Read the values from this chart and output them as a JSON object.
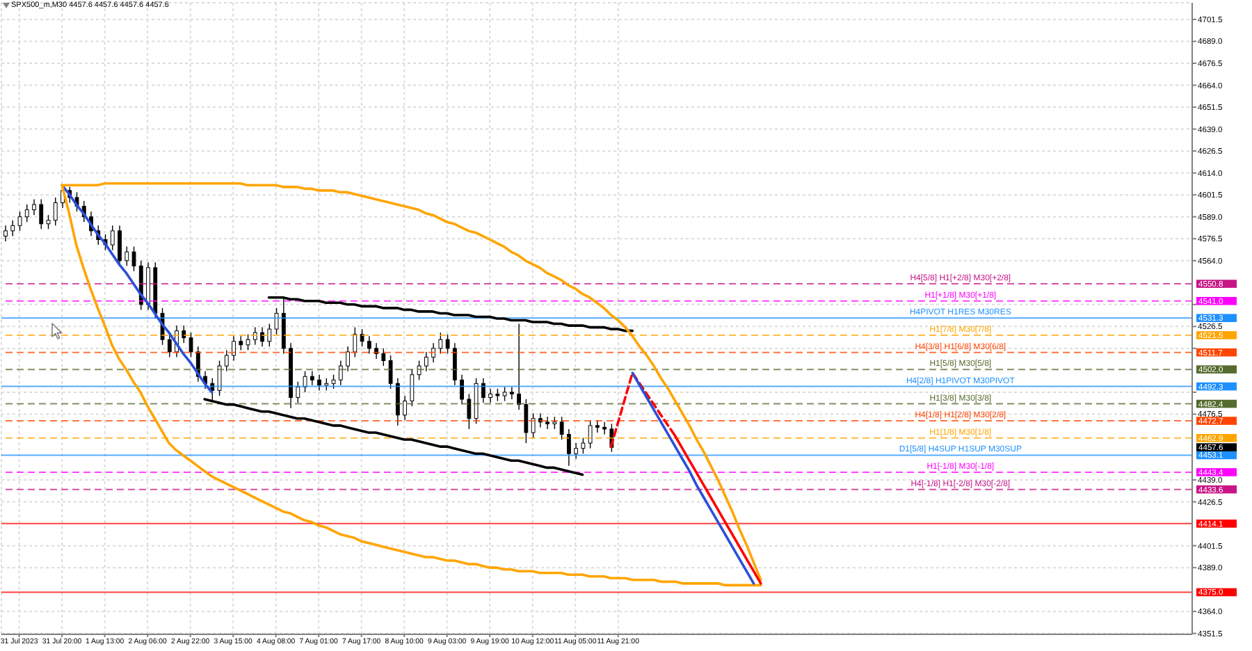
{
  "chart_data": {
    "type": "candlestick",
    "title": "SPX500_m,M30 4457.6 4457.6 4457.6 4457.6",
    "color": "#000000",
    "categories": [
      null,
      null,
      "31 Jul 2023",
      null,
      null,
      null,
      null,
      null,
      "31 Jul 20:00",
      null,
      null,
      null,
      null,
      null,
      "1 Aug 13:00",
      null,
      null,
      null,
      null,
      null,
      "2 Aug 06:00",
      null,
      null,
      null,
      null,
      null,
      "2 Aug 22:00",
      null,
      null,
      null,
      null,
      null,
      "3 Aug 15:00",
      null,
      null,
      null,
      null,
      null,
      "4 Aug 08:00",
      null,
      null,
      null,
      null,
      null,
      "7 Aug 01:00",
      null,
      null,
      null,
      null,
      null,
      "7 Aug 17:00",
      null,
      null,
      null,
      null,
      null,
      "8 Aug 10:00",
      null,
      null,
      null,
      null,
      null,
      "9 Aug 03:00",
      null,
      null,
      null,
      null,
      null,
      "9 Aug 19:00",
      null,
      null,
      null,
      null,
      null,
      "10 Aug 12:00",
      null,
      null,
      null,
      null,
      null,
      "11 Aug 05:00",
      null,
      null,
      null,
      null,
      null,
      "11 Aug 21:00",
      null,
      null,
      null,
      null,
      null,
      null,
      null,
      null,
      null,
      null,
      null,
      null,
      null,
      null,
      null,
      null,
      null,
      null,
      null,
      null,
      null,
      null,
      null,
      null,
      null,
      null,
      null,
      null,
      null,
      null,
      null,
      null,
      null,
      null,
      null,
      null,
      null,
      null,
      null,
      null,
      null,
      null,
      null,
      null,
      null,
      null,
      null,
      null,
      null,
      null,
      null,
      null,
      null,
      null,
      null,
      null,
      null,
      null,
      null,
      null,
      null,
      null,
      null,
      null,
      null,
      null,
      null,
      null,
      null,
      null,
      null,
      null,
      null,
      null,
      null,
      null,
      null,
      null,
      null,
      null
    ],
    "ohlc": [
      [
        4578,
        4584,
        4575,
        4581
      ],
      [
        4581,
        4587,
        4578,
        4584
      ],
      [
        4584,
        4592,
        4581,
        4589
      ],
      [
        4589,
        4596,
        4586,
        4593
      ],
      [
        4593,
        4599,
        4590,
        4596
      ],
      [
        4596,
        4599,
        4582,
        4585
      ],
      [
        4585,
        4590,
        4582,
        4587
      ],
      [
        4587,
        4600,
        4584,
        4597
      ],
      [
        4597,
        4607,
        4594,
        4604
      ],
      [
        4604,
        4606,
        4597,
        4600
      ],
      [
        4600,
        4603,
        4592,
        4595
      ],
      [
        4595,
        4598,
        4586,
        4589
      ],
      [
        4589,
        4592,
        4578,
        4581
      ],
      [
        4581,
        4584,
        4573,
        4576
      ],
      [
        4576,
        4579,
        4570,
        4573
      ],
      [
        4573,
        4584,
        4570,
        4581
      ],
      [
        4581,
        4584,
        4561,
        4564
      ],
      [
        4564,
        4572,
        4561,
        4569
      ],
      [
        4569,
        4572,
        4558,
        4561
      ],
      [
        4561,
        4564,
        4536,
        4539
      ],
      [
        4539,
        4563,
        4536,
        4560
      ],
      [
        4560,
        4563,
        4531,
        4534
      ],
      [
        4534,
        4537,
        4516,
        4519
      ],
      [
        4519,
        4522,
        4509,
        4512
      ],
      [
        4512,
        4527,
        4509,
        4524
      ],
      [
        4524,
        4527,
        4517,
        4520
      ],
      [
        4520,
        4523,
        4509,
        4512
      ],
      [
        4512,
        4515,
        4495,
        4498
      ],
      [
        4498,
        4501,
        4491,
        4494
      ],
      [
        4494,
        4497,
        4484,
        4490
      ],
      [
        4490,
        4507,
        4487,
        4504
      ],
      [
        4504,
        4513,
        4501,
        4510
      ],
      [
        4510,
        4521,
        4507,
        4518
      ],
      [
        4518,
        4521,
        4513,
        4516
      ],
      [
        4516,
        4522,
        4513,
        4519
      ],
      [
        4519,
        4526,
        4516,
        4523
      ],
      [
        4523,
        4526,
        4515,
        4518
      ],
      [
        4518,
        4528,
        4515,
        4525
      ],
      [
        4525,
        4537,
        4522,
        4534
      ],
      [
        4534,
        4543,
        4511,
        4514
      ],
      [
        4514,
        4517,
        4480,
        4486
      ],
      [
        4486,
        4495,
        4483,
        4492
      ],
      [
        4492,
        4501,
        4489,
        4498
      ],
      [
        4498,
        4501,
        4493,
        4496
      ],
      [
        4496,
        4499,
        4490,
        4493
      ],
      [
        4493,
        4497,
        4490,
        4494
      ],
      [
        4494,
        4499,
        4491,
        4496
      ],
      [
        4496,
        4507,
        4493,
        4504
      ],
      [
        4504,
        4515,
        4501,
        4512
      ],
      [
        4512,
        4526,
        4509,
        4522
      ],
      [
        4522,
        4525,
        4515,
        4518
      ],
      [
        4518,
        4521,
        4511,
        4514
      ],
      [
        4514,
        4517,
        4508,
        4511
      ],
      [
        4511,
        4514,
        4504,
        4507
      ],
      [
        4507,
        4510,
        4491,
        4494
      ],
      [
        4494,
        4497,
        4470,
        4476
      ],
      [
        4476,
        4487,
        4473,
        4484
      ],
      [
        4484,
        4502,
        4481,
        4499
      ],
      [
        4499,
        4507,
        4496,
        4504
      ],
      [
        4504,
        4512,
        4501,
        4509
      ],
      [
        4509,
        4517,
        4506,
        4514
      ],
      [
        4514,
        4523,
        4511,
        4519
      ],
      [
        4519,
        4522,
        4511,
        4514
      ],
      [
        4514,
        4517,
        4493,
        4496
      ],
      [
        4496,
        4499,
        4482,
        4485
      ],
      [
        4485,
        4488,
        4468,
        4474
      ],
      [
        4474,
        4497,
        4471,
        4494
      ],
      [
        4494,
        4497,
        4483,
        4486
      ],
      [
        4486,
        4491,
        4483,
        4488
      ],
      [
        4488,
        4491,
        4484,
        4487
      ],
      [
        4487,
        4492,
        4484,
        4489
      ],
      [
        4489,
        4492,
        4485,
        4488
      ],
      [
        4488,
        4528,
        4479,
        4482
      ],
      [
        4482,
        4485,
        4460,
        4466
      ],
      [
        4466,
        4477,
        4463,
        4474
      ],
      [
        4474,
        4477,
        4469,
        4472
      ],
      [
        4472,
        4475,
        4468,
        4471
      ],
      [
        4471,
        4475,
        4468,
        4472
      ],
      [
        4472,
        4475,
        4462,
        4465
      ],
      [
        4465,
        4468,
        4447,
        4454
      ],
      [
        4454,
        4460,
        4451,
        4457
      ],
      [
        4457,
        4463,
        4454,
        4460
      ],
      [
        4460,
        4473,
        4457,
        4470
      ],
      [
        4470,
        4473,
        4466,
        4469
      ],
      [
        4469,
        4472,
        4465,
        4468
      ],
      [
        4468,
        4471,
        4455,
        4457.6
      ],
      null,
      null,
      null,
      null,
      null,
      null,
      null,
      null,
      null,
      null,
      null,
      null,
      null,
      null,
      null,
      null,
      null,
      null,
      null,
      null,
      null,
      null,
      null,
      null,
      null,
      null,
      null,
      null,
      null,
      null,
      null,
      null,
      null,
      null,
      null,
      null,
      null,
      null,
      null,
      null,
      null,
      null,
      null,
      null,
      null,
      null,
      null,
      null,
      null,
      null,
      null,
      null,
      null,
      null,
      null,
      null,
      null,
      null,
      null,
      null,
      null,
      null,
      null,
      null,
      null,
      null,
      null,
      null,
      null,
      null,
      null,
      null,
      null,
      null,
      null,
      null,
      null,
      null,
      null,
      null,
      null
    ],
    "series": [
      {
        "type": "line",
        "color": "#2b4fd8",
        "values": [
          null,
          null,
          null,
          null,
          null,
          null,
          null,
          null,
          4607,
          4602,
          4596,
          4591,
          4585,
          4579,
          4574,
          4568,
          4562,
          4557,
          4551,
          4545,
          4540,
          4534,
          4528,
          4523,
          4517,
          4511,
          4506,
          4500,
          4494,
          4489,
          null,
          null,
          null,
          null,
          null,
          null,
          null,
          null,
          null,
          null,
          null,
          null,
          null,
          null,
          null,
          null,
          null,
          null,
          null,
          null,
          null,
          null,
          null,
          null,
          null,
          null,
          null,
          null,
          null,
          null,
          null,
          null,
          null,
          null,
          null,
          null,
          null,
          null,
          null,
          null,
          null,
          null,
          null,
          null,
          null,
          null,
          null,
          null,
          null,
          null,
          null,
          null,
          null,
          null,
          null,
          null,
          null,
          null,
          null,
          null,
          null,
          null,
          null,
          null,
          null,
          null,
          null,
          null,
          null,
          null,
          null,
          null,
          null,
          null,
          null,
          null,
          null,
          null,
          null,
          null,
          null,
          null,
          null,
          null,
          null,
          null,
          null,
          null,
          null,
          null,
          null,
          null,
          null,
          null,
          null,
          null,
          null,
          null,
          null,
          null,
          null,
          null,
          null,
          null,
          null,
          null,
          null,
          null,
          null,
          null,
          null,
          null,
          null,
          null,
          null,
          null,
          null,
          null,
          null,
          null,
          null,
          null,
          null,
          null,
          null,
          null,
          null,
          null,
          null,
          null,
          null,
          null,
          null,
          null,
          null,
          null,
          null
        ]
      },
      {
        "type": "line",
        "color": "#000000",
        "values": [
          null,
          null,
          null,
          null,
          null,
          null,
          null,
          null,
          null,
          null,
          null,
          null,
          null,
          null,
          null,
          null,
          null,
          null,
          null,
          null,
          null,
          null,
          null,
          null,
          null,
          null,
          null,
          null,
          null,
          null,
          null,
          null,
          null,
          null,
          null,
          null,
          null,
          4543,
          4543,
          4543,
          4542,
          4542,
          4541,
          4541,
          4541,
          4540,
          4540,
          4540,
          4539,
          4539,
          4538,
          4538,
          4538,
          4537,
          4537,
          4537,
          4536,
          4536,
          4535,
          4535,
          4535,
          4534,
          4534,
          4533,
          4533,
          4533,
          4532,
          4532,
          4532,
          4531,
          4531,
          4530,
          4530,
          4530,
          4529,
          4529,
          4529,
          4528,
          4528,
          4527,
          4527,
          4527,
          4526,
          4526,
          4526,
          4525,
          4525,
          4524,
          4524,
          null,
          null,
          null,
          null,
          null,
          null,
          null,
          null,
          null,
          null,
          null,
          null,
          null,
          null,
          null,
          null,
          null,
          null,
          null,
          null,
          null,
          null,
          null,
          null,
          null,
          null,
          null,
          null,
          null,
          null,
          null,
          null,
          null,
          null,
          null,
          null,
          null,
          null,
          null,
          null,
          null,
          null,
          null,
          null,
          null,
          null,
          null,
          null,
          null,
          null,
          null,
          null,
          null,
          null,
          null,
          null,
          null,
          null,
          null,
          null,
          null,
          null,
          null,
          null,
          null,
          null,
          null,
          null,
          null,
          null,
          null,
          null,
          null,
          null,
          null,
          null,
          null,
          null
        ]
      },
      {
        "type": "line",
        "color": "#000000",
        "values": [
          null,
          null,
          null,
          null,
          null,
          null,
          null,
          null,
          null,
          null,
          null,
          null,
          null,
          null,
          null,
          null,
          null,
          null,
          null,
          null,
          null,
          null,
          null,
          null,
          null,
          null,
          null,
          null,
          4485,
          4484,
          4483,
          4482,
          4482,
          4481,
          4480,
          4479,
          4478,
          4478,
          4477,
          4476,
          4475,
          4474,
          4474,
          4473,
          4472,
          4471,
          4470,
          4470,
          4469,
          4468,
          4467,
          4466,
          4466,
          4465,
          4464,
          4463,
          4462,
          4462,
          4461,
          4460,
          4459,
          4458,
          4458,
          4457,
          4456,
          4455,
          4454,
          4454,
          4453,
          4452,
          4451,
          4450,
          4450,
          4449,
          4448,
          4447,
          4446,
          4446,
          4445,
          4444,
          4443,
          4442,
          null,
          null,
          null,
          null,
          null,
          null,
          null,
          null,
          null,
          null,
          null,
          null,
          null,
          null,
          null,
          null,
          null,
          null,
          null,
          null,
          null,
          null,
          null,
          null,
          null,
          null,
          null,
          null,
          null,
          null,
          null,
          null,
          null,
          null,
          null,
          null,
          null,
          null,
          null,
          null,
          null,
          null,
          null,
          null,
          null,
          null,
          null,
          null,
          null,
          null,
          null,
          null,
          null,
          null,
          null,
          null,
          null,
          null,
          null,
          null,
          null,
          null,
          null,
          null,
          null,
          null,
          null,
          null,
          null,
          null,
          null,
          null,
          null,
          null,
          null,
          null,
          null,
          null,
          null,
          null,
          null,
          null,
          null,
          null,
          null
        ]
      },
      {
        "type": "line",
        "color": "#ffa500",
        "values": [
          null,
          null,
          null,
          null,
          null,
          null,
          null,
          null,
          4607,
          4607,
          4607,
          4607,
          4607,
          4607,
          4608,
          4608,
          4608,
          4608,
          4608,
          4608,
          4608,
          4608,
          4608,
          4608,
          4608,
          4608,
          4608,
          4608,
          4608,
          4608,
          4608,
          4608,
          4608,
          4608,
          4607,
          4607,
          4607,
          4607,
          4607,
          4606,
          4606,
          4606,
          4605,
          4605,
          4604,
          4604,
          4604,
          4603,
          4603,
          4602,
          4601,
          4600,
          4599,
          4598,
          4597,
          4596,
          4595,
          4594,
          4593,
          4591,
          4590,
          4588,
          4586,
          4585,
          4583,
          4581,
          4580,
          4578,
          4576,
          4574,
          4572,
          4569,
          4567,
          4564,
          4562,
          4560,
          4557,
          4555,
          4553,
          4550,
          4548,
          4545,
          4543,
          4540,
          4537,
          4533,
          4530,
          4526,
          4521,
          4515,
          4510,
          4504,
          4497,
          4491,
          4484,
          4477,
          4470,
          4462,
          4455,
          4447,
          4439,
          4430,
          4421,
          4411,
          4402,
          4392,
          4382,
          null,
          null,
          null,
          null,
          null,
          null,
          null,
          null,
          null,
          null,
          null,
          null,
          null,
          null,
          null,
          null,
          null,
          null,
          null,
          null,
          null,
          null,
          null,
          null,
          null,
          null,
          null,
          null,
          null,
          null,
          null,
          null,
          null,
          null,
          null,
          null,
          null,
          null,
          null,
          null,
          null,
          null,
          null,
          null,
          null,
          null,
          null,
          null,
          null,
          null,
          null,
          null,
          null,
          null,
          null,
          null,
          null,
          null,
          null,
          null
        ]
      },
      {
        "type": "line",
        "color": "#ffa500",
        "values": [
          null,
          null,
          null,
          null,
          null,
          null,
          null,
          null,
          4607,
          4591,
          4573,
          4560,
          4548,
          4537,
          4527,
          4516,
          4508,
          4502,
          4495,
          4489,
          4481,
          4474,
          4467,
          4460,
          4456,
          4453,
          4450,
          4447,
          4444,
          4441,
          4439,
          4437,
          4435,
          4433,
          4431,
          4429,
          4427,
          4425,
          4423,
          4421,
          4420,
          4418,
          4416,
          4415,
          4413,
          4412,
          4410,
          4408,
          4407,
          4406,
          4404,
          4403,
          4402,
          4401,
          4400,
          4399,
          4398,
          4397,
          4396,
          4395,
          4395,
          4394,
          4393,
          4393,
          4392,
          4391,
          4391,
          4390,
          4389,
          4389,
          4388,
          4388,
          4387,
          4387,
          4387,
          4386,
          4386,
          4386,
          4386,
          4385,
          4385,
          4385,
          4384,
          4384,
          4384,
          4383,
          4383,
          4383,
          4382,
          4382,
          4382,
          4382,
          4381,
          4381,
          4381,
          4380,
          4380,
          4380,
          4380,
          4380,
          4380,
          4379,
          4379,
          4379,
          4379,
          4379,
          4379,
          null,
          null,
          null,
          null,
          null,
          null,
          null,
          null,
          null,
          null,
          null,
          null,
          null,
          null,
          null,
          null,
          null,
          null,
          null,
          null,
          null,
          null,
          null,
          null,
          null,
          null,
          null,
          null,
          null,
          null,
          null,
          null,
          null,
          null,
          null,
          null,
          null,
          null,
          null,
          null,
          null,
          null,
          null,
          null,
          null,
          null,
          null,
          null,
          null,
          null,
          null,
          null,
          null,
          null,
          null,
          null,
          null,
          null,
          null,
          null
        ]
      },
      {
        "type": "line",
        "color": "#ff0000",
        "line_style": "dashed",
        "values": [
          null,
          null,
          null,
          null,
          null,
          null,
          null,
          null,
          null,
          null,
          null,
          null,
          null,
          null,
          null,
          null,
          null,
          null,
          null,
          null,
          null,
          null,
          null,
          null,
          null,
          null,
          null,
          null,
          null,
          null,
          null,
          null,
          null,
          null,
          null,
          null,
          null,
          null,
          null,
          null,
          null,
          null,
          null,
          null,
          null,
          null,
          null,
          null,
          null,
          null,
          null,
          null,
          null,
          null,
          null,
          null,
          null,
          null,
          null,
          null,
          null,
          null,
          null,
          null,
          null,
          null,
          null,
          null,
          null,
          null,
          null,
          null,
          null,
          null,
          null,
          null,
          null,
          null,
          null,
          null,
          null,
          null,
          null,
          null,
          null,
          4458,
          4472,
          4486,
          4500,
          4494,
          4488,
          4482,
          4476,
          4470,
          4464,
          null,
          null,
          null,
          null,
          null,
          null,
          null,
          null,
          null,
          null,
          null,
          null,
          null,
          null,
          null,
          null,
          null,
          null,
          null,
          null,
          null,
          null,
          null,
          null,
          null,
          null,
          null,
          null,
          null,
          null,
          null,
          null,
          null,
          null,
          null,
          null,
          null,
          null,
          null,
          null,
          null,
          null,
          null,
          null,
          null,
          null,
          null,
          null,
          null,
          null,
          null,
          null,
          null,
          null,
          null,
          null,
          null,
          null,
          null,
          null,
          null,
          null,
          null,
          null,
          null,
          null,
          null,
          null,
          null,
          null,
          null,
          null
        ]
      },
      {
        "type": "line",
        "color": "#2b4fd8",
        "values": [
          null,
          null,
          null,
          null,
          null,
          null,
          null,
          null,
          null,
          null,
          null,
          null,
          null,
          null,
          null,
          null,
          null,
          null,
          null,
          null,
          null,
          null,
          null,
          null,
          null,
          null,
          null,
          null,
          null,
          null,
          null,
          null,
          null,
          null,
          null,
          null,
          null,
          null,
          null,
          null,
          null,
          null,
          null,
          null,
          null,
          null,
          null,
          null,
          null,
          null,
          null,
          null,
          null,
          null,
          null,
          null,
          null,
          null,
          null,
          null,
          null,
          null,
          null,
          null,
          null,
          null,
          null,
          null,
          null,
          null,
          null,
          null,
          null,
          null,
          null,
          null,
          null,
          null,
          null,
          null,
          null,
          null,
          null,
          null,
          null,
          null,
          null,
          null,
          4500,
          4493,
          4486,
          4479,
          4472,
          4465,
          4458,
          4451,
          4444,
          4436,
          4429,
          4422,
          4415,
          4408,
          4401,
          4394,
          4387,
          4380,
          null,
          null,
          null,
          null,
          null,
          null,
          null,
          null,
          null,
          null,
          null,
          null,
          null,
          null,
          null,
          null,
          null,
          null,
          null,
          null,
          null,
          null,
          null,
          null,
          null,
          null,
          null,
          null,
          null,
          null,
          null,
          null,
          null,
          null,
          null,
          null,
          null,
          null,
          null,
          null,
          null,
          null,
          null,
          null,
          null,
          null,
          null,
          null,
          null,
          null,
          null,
          null,
          null,
          null,
          null,
          null,
          null,
          null,
          null,
          null,
          null
        ]
      },
      {
        "type": "line",
        "color": "#ff0000",
        "values": [
          null,
          null,
          null,
          null,
          null,
          null,
          null,
          null,
          null,
          null,
          null,
          null,
          null,
          null,
          null,
          null,
          null,
          null,
          null,
          null,
          null,
          null,
          null,
          null,
          null,
          null,
          null,
          null,
          null,
          null,
          null,
          null,
          null,
          null,
          null,
          null,
          null,
          null,
          null,
          null,
          null,
          null,
          null,
          null,
          null,
          null,
          null,
          null,
          null,
          null,
          null,
          null,
          null,
          null,
          null,
          null,
          null,
          null,
          null,
          null,
          null,
          null,
          null,
          null,
          null,
          null,
          null,
          null,
          null,
          null,
          null,
          null,
          null,
          null,
          null,
          null,
          null,
          null,
          null,
          null,
          null,
          null,
          null,
          null,
          null,
          null,
          null,
          null,
          null,
          null,
          null,
          null,
          null,
          null,
          4464,
          4457,
          4450,
          4443,
          4436,
          4429,
          4422,
          4415,
          4408,
          4401,
          4394,
          4387,
          4380,
          null,
          null,
          null,
          null,
          null,
          null,
          null,
          null,
          null,
          null,
          null,
          null,
          null,
          null,
          null,
          null,
          null,
          null,
          null,
          null,
          null,
          null,
          null,
          null,
          null,
          null,
          null,
          null,
          null,
          null,
          null,
          null,
          null,
          null,
          null,
          null,
          null,
          null,
          null,
          null,
          null,
          null,
          null,
          null,
          null,
          null,
          null,
          null,
          null,
          null,
          null,
          null,
          null,
          null,
          null,
          null,
          null,
          null,
          null,
          null
        ]
      }
    ],
    "ylim": [
      4351,
      4711
    ],
    "yticks": [
      4351.5,
      {
        "value": 4364,
        "label": "4364.0"
      },
      {
        "value": 4389,
        "label": "4389.0"
      },
      4401.5,
      4426.5,
      {
        "value": 4439,
        "label": "4439.0"
      },
      4476.5,
      {
        "value": 4489,
        "label": null
      },
      {
        "value": 4514,
        "label": null
      },
      4526.5,
      {
        "value": 4539,
        "label": null
      },
      {
        "value": 4564,
        "label": "4564.0"
      },
      4576.5,
      {
        "value": 4589,
        "label": "4589.0"
      },
      4601.5,
      {
        "value": 4614,
        "label": "4614.0"
      },
      4626.5,
      {
        "value": 4639,
        "label": "4639.0"
      },
      4651.5,
      {
        "value": 4664,
        "label": "4664.0"
      },
      4676.5,
      {
        "value": 4689,
        "label": "4689.0"
      },
      4701.5
    ],
    "grid": true,
    "ref_lines": [
      {
        "axis": "y",
        "value": 4550.8,
        "label": "4550.8",
        "color": "#c71585",
        "line_style": "dashed"
      },
      {
        "axis": "y",
        "value": 4541.0,
        "label": "4541.0",
        "color": "#ff00ff",
        "line_style": "dashed"
      },
      {
        "axis": "y",
        "value": 4531.3,
        "label": "4531.3",
        "color": "#1e90ff",
        "line_style": "solid"
      },
      {
        "axis": "y",
        "value": 4521.5,
        "label": "4521.5",
        "color": "#ffa500",
        "line_style": "dashed"
      },
      {
        "axis": "y",
        "value": 4511.7,
        "label": "4511.7",
        "color": "#ff4500",
        "line_style": "dashed"
      },
      {
        "axis": "y",
        "value": 4502.0,
        "label": "4502.0",
        "color": "#556b2f",
        "line_style": "dashed"
      },
      {
        "axis": "y",
        "value": 4492.3,
        "label": "4492.3",
        "color": "#1e90ff",
        "line_style": "solid"
      },
      {
        "axis": "y",
        "value": 4482.4,
        "label": "4482.4",
        "color": "#556b2f",
        "line_style": "dashed"
      },
      {
        "axis": "y",
        "value": 4472.7,
        "label": "4472.7",
        "color": "#ff4500",
        "line_style": "dashed"
      },
      {
        "axis": "y",
        "value": 4462.9,
        "label": "4462.9",
        "color": "#ffa500",
        "line_style": "dashed"
      },
      {
        "axis": "y",
        "value": 4453.1,
        "label": "4453.1",
        "color": "#1e90ff",
        "line_style": "solid"
      },
      {
        "axis": "y",
        "value": 4443.4,
        "label": "4443.4",
        "color": "#ff00ff",
        "line_style": "dashed"
      },
      {
        "axis": "y",
        "value": 4433.6,
        "label": "4433.6",
        "color": "#c71585",
        "line_style": "dashed"
      },
      {
        "axis": "y",
        "value": 4414.1,
        "label": "4414.1",
        "color": "#ff0000",
        "line_style": "solid"
      },
      {
        "axis": "y",
        "value": 4375.0,
        "label": "4375.0",
        "color": "#ff0000",
        "line_style": "solid"
      }
    ],
    "annotations": [
      {
        "text": "H4[5/8] H1[+2/8] M30[+2/8]",
        "y": 4550.8
      },
      {
        "text": "H1[+1/8] M30[+1/8]",
        "y": 4541.0
      },
      {
        "text": "H4PIVOT H1RES M30RES",
        "y": 4531.3
      },
      {
        "text": "H1[7/8] M30[7/8]",
        "y": 4521.5
      },
      {
        "text": "H4[3/8] H1[6/8] M30[6/8]",
        "y": 4511.7
      },
      {
        "text": "H1[5/8] M30[5/8]",
        "y": 4502.0
      },
      {
        "text": "H4[2/8] H1PIVOT M30PIVOT",
        "y": 4492.3
      },
      {
        "text": "H1[3/8] M30[3/8]",
        "y": 4482.4
      },
      {
        "text": "H4[1/8] H1[2/8] M30[2/8]",
        "y": 4472.7
      },
      {
        "text": "H1[1/8] M30[1/8]",
        "y": 4462.9
      },
      {
        "text": "D1[5/8] H4SUP H1SUP M30SUP",
        "y": 4453.1
      },
      {
        "text": "H1[-1/8] M30[-1/8]",
        "y": 4443.4
      },
      {
        "text": "H4[-1/8] H1[-2/8] M30[-2/8]",
        "y": 4433.6
      },
      "4457.6"
    ]
  }
}
